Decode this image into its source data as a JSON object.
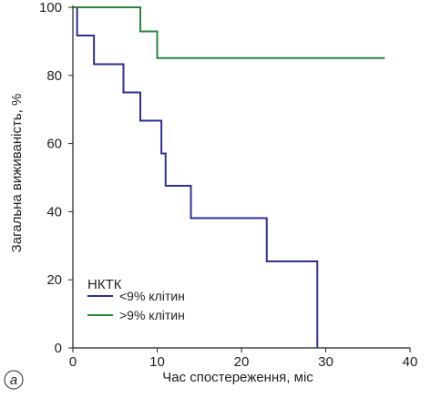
{
  "chart_data": {
    "type": "line",
    "step": true,
    "panel_label": "а",
    "xlabel": "Час спостереження, міс",
    "ylabel": "Загальна виживаність, %",
    "xlim": [
      0,
      40
    ],
    "ylim": [
      0,
      100
    ],
    "xticks": [
      0,
      10,
      20,
      30,
      40
    ],
    "yticks": [
      0,
      20,
      40,
      60,
      80,
      100
    ],
    "grid": false,
    "legend": {
      "title": "НКТК",
      "position": "bottom-left"
    },
    "series": [
      {
        "name": "<9% клітин",
        "color": "#2e3192",
        "x": [
          0,
          0.5,
          2.5,
          6,
          8,
          10,
          10.5,
          11,
          14,
          23,
          29
        ],
        "y": [
          100,
          91.7,
          83.3,
          75,
          66.7,
          66.7,
          57.1,
          47.6,
          38.1,
          25.4,
          0
        ]
      },
      {
        "name": ">9% клітин",
        "color": "#2e8540",
        "x": [
          0,
          8,
          10,
          37
        ],
        "y": [
          100,
          92.9,
          85.1,
          85.1
        ]
      }
    ]
  }
}
